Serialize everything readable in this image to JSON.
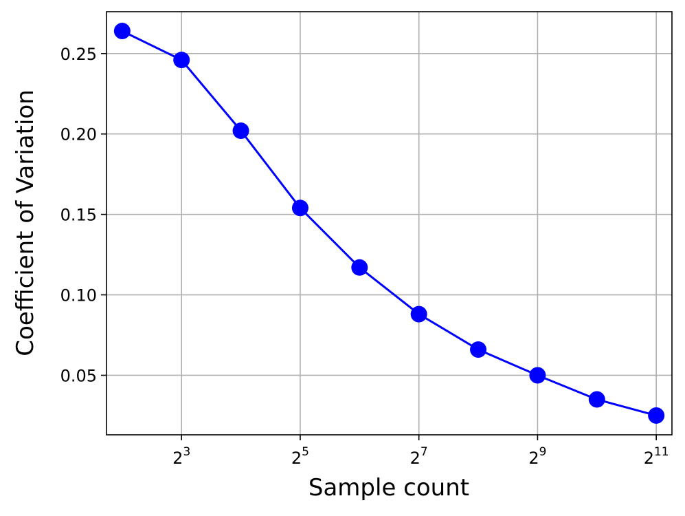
{
  "chart_data": {
    "type": "line",
    "title": "",
    "xlabel": "Sample count",
    "ylabel": "Coefficient of Variation",
    "x_scale": "log2",
    "x": [
      4,
      8,
      16,
      32,
      64,
      128,
      256,
      512,
      1024,
      2048
    ],
    "xlim": [
      3.33,
      2460
    ],
    "ylim": [
      0.013,
      0.276
    ],
    "grid": true,
    "legend": "none",
    "x_ticks": [
      {
        "value": 8,
        "base": "2",
        "exp": "3"
      },
      {
        "value": 32,
        "base": "2",
        "exp": "5"
      },
      {
        "value": 128,
        "base": "2",
        "exp": "7"
      },
      {
        "value": 512,
        "base": "2",
        "exp": "9"
      },
      {
        "value": 2048,
        "base": "2",
        "exp": "11"
      }
    ],
    "y_ticks": [
      {
        "value": 0.05,
        "label": "0.05"
      },
      {
        "value": 0.1,
        "label": "0.10"
      },
      {
        "value": 0.15,
        "label": "0.15"
      },
      {
        "value": 0.2,
        "label": "0.20"
      },
      {
        "value": 0.25,
        "label": "0.25"
      }
    ],
    "series": [
      {
        "color": "#0000ff",
        "marker": "circle",
        "values": [
          0.264,
          0.246,
          0.202,
          0.154,
          0.117,
          0.088,
          0.066,
          0.05,
          0.035,
          0.025
        ]
      }
    ]
  }
}
